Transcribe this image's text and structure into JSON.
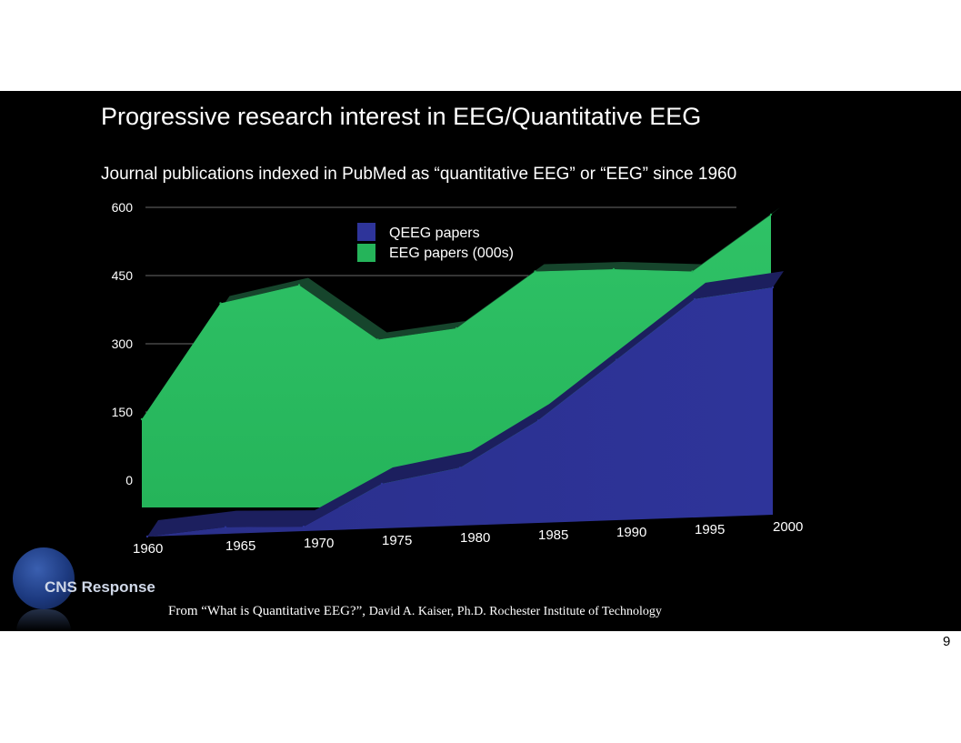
{
  "slide": {
    "title": "Progressive research interest in EEG/Quantitative EEG",
    "caption_part1": "From “What is Quantitative EEG?”,",
    "caption_part2": "David A. Kaiser, Ph.D.   Rochester Institute of Technology",
    "logo_text": "CNS Response",
    "page_number": "9"
  },
  "colors": {
    "background": "#000000",
    "qeeg": "#2e349a",
    "qeeg_dark": "#1c1f5e",
    "eeg": "#25b45a",
    "eeg_dark": "#16452c"
  },
  "chart_data": {
    "type": "area",
    "title": "Journal publications indexed in PubMed as “quantitative EEG” or “EEG” since 1960",
    "x": [
      1960,
      1965,
      1970,
      1975,
      1980,
      1985,
      1990,
      1995,
      2000
    ],
    "x_tick_labels": [
      "1960",
      "1965",
      "1970",
      "1975",
      "1980",
      "1985",
      "1990",
      "1995",
      "2000"
    ],
    "y_tick_labels": [
      "0",
      "150",
      "300",
      "450",
      "600"
    ],
    "ylim": [
      0,
      600
    ],
    "stacked": false,
    "perspective_3d": true,
    "series": [
      {
        "name": "QEEG papers",
        "values": [
          0,
          15,
          10,
          100,
          130,
          230,
          360,
          490,
          510
        ]
      },
      {
        "name": "EEG papers (000s)",
        "values": [
          150,
          405,
          445,
          325,
          350,
          475,
          480,
          475,
          600
        ]
      }
    ],
    "legend": "top-center",
    "grid": true
  }
}
